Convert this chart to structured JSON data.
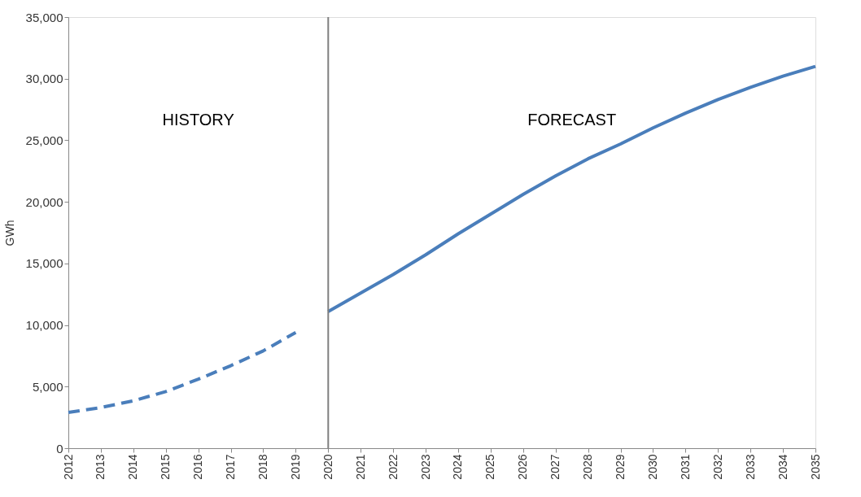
{
  "chart_data": {
    "type": "line",
    "ylabel": "GWh",
    "xlim": [
      2012,
      2035
    ],
    "xticks": [
      2012,
      2013,
      2014,
      2015,
      2016,
      2017,
      2018,
      2019,
      2020,
      2021,
      2022,
      2023,
      2024,
      2025,
      2026,
      2027,
      2028,
      2029,
      2030,
      2031,
      2032,
      2033,
      2034,
      2035
    ],
    "ylim": [
      0,
      35000
    ],
    "yticks": [
      0,
      {
        "value": 5000,
        "label": "5,000"
      },
      {
        "value": 10000,
        "label": "10,000"
      },
      {
        "value": 15000,
        "label": "15,000"
      },
      {
        "value": 20000,
        "label": "20,000"
      },
      {
        "value": 25000,
        "label": "25,000"
      },
      {
        "value": 30000,
        "label": "30,000"
      },
      {
        "value": 35000,
        "label": "35,000"
      }
    ],
    "grid": false,
    "marker": "none",
    "series": [
      {
        "color": "#4a7ebb",
        "line_style": "dashed",
        "x": [
          2012,
          2013,
          2014,
          2015,
          2016,
          2017,
          2018,
          2019
        ],
        "values": [
          2900,
          3300,
          3850,
          4600,
          5600,
          6700,
          7900,
          9400
        ]
      },
      {
        "color": "#4a7ebb",
        "line_style": "solid",
        "x": [
          2020,
          2021,
          2022,
          2023,
          2024,
          2025,
          2026,
          2027,
          2028,
          2029,
          2030,
          2031,
          2032,
          2033,
          2034,
          2035
        ],
        "values": [
          11100,
          12600,
          14100,
          15700,
          17400,
          19000,
          20600,
          22100,
          23500,
          24700,
          26000,
          27200,
          28300,
          29300,
          30200,
          31000
        ]
      }
    ],
    "ref_lines": [
      {
        "axis": "x",
        "value": 2020,
        "color": "#7f7f7f",
        "line_style": "solid"
      }
    ],
    "annotations": [
      "HISTORY",
      "FORECAST"
    ]
  }
}
